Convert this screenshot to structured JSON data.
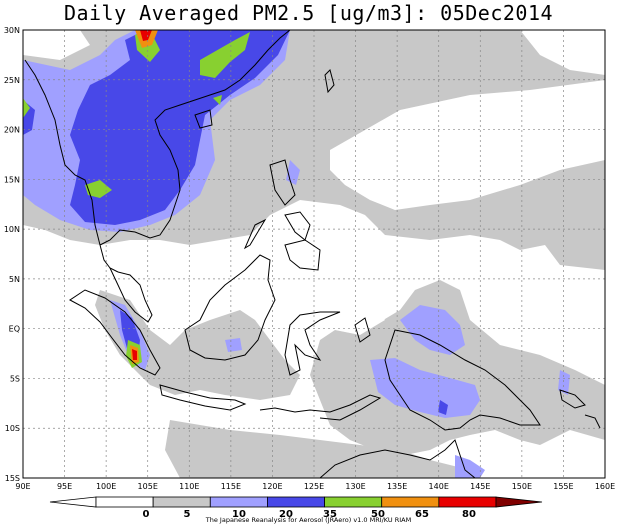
{
  "title": "Daily Averaged PM2.5 [ug/m3]: 05Dec2014",
  "map": {
    "lon_range": [
      90,
      160
    ],
    "lat_range": [
      -15,
      30
    ],
    "lon_ticks": [
      "90E",
      "95E",
      "100E",
      "105E",
      "110E",
      "115E",
      "120E",
      "125E",
      "130E",
      "135E",
      "140E",
      "145E",
      "150E",
      "155E",
      "160E"
    ],
    "lat_ticks": [
      "30N",
      "25N",
      "20N",
      "15N",
      "10N",
      "5N",
      "EQ",
      "5S",
      "10S",
      "15S"
    ],
    "gridlines": true
  },
  "colorbar": {
    "levels": [
      "0",
      "5",
      "10",
      "20",
      "35",
      "50",
      "65",
      "80"
    ],
    "colors": [
      "#ffffff",
      "#ffffff",
      "#c8c8c8",
      "#a0a0ff",
      "#4848e8",
      "#88d030",
      "#f09010",
      "#e80000",
      "#800000"
    ]
  },
  "credit": "The Japanese Reanalysis for Aerosol (JRAero) v1.0 MRI/KU RIAM"
}
